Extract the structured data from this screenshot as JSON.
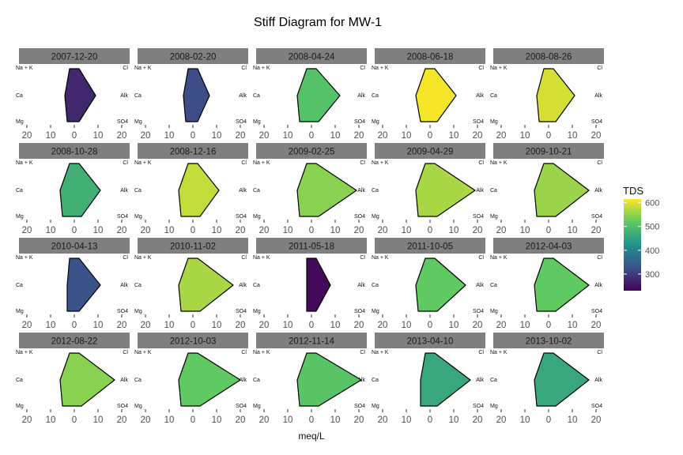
{
  "chart_data": {
    "type": "stiff",
    "title": "Stiff Diagram for MW-1",
    "xlabel": "meq/L",
    "x_ticks": [
      -20,
      -10,
      0,
      10,
      20
    ],
    "x_tick_labels": [
      "20",
      "10",
      "0",
      "10",
      "20"
    ],
    "xlim": [
      -20,
      20
    ],
    "ion_labels": {
      "left": [
        "Na + K",
        "Ca",
        "Mg"
      ],
      "right": [
        "Cl",
        "Alk",
        "SO4"
      ]
    },
    "legend": {
      "title": "TDS",
      "ticks": [
        300,
        400,
        500,
        600
      ],
      "range": [
        230,
        615
      ],
      "colors": [
        "#440154",
        "#3b528b",
        "#21918c",
        "#5ec962",
        "#fde725"
      ]
    },
    "panels": [
      {
        "date": "2007-12-20",
        "tds": 275,
        "cations": [
          -2,
          -4,
          -3
        ],
        "anions": [
          2,
          9,
          2
        ]
      },
      {
        "date": "2008-02-20",
        "tds": 320,
        "cations": [
          -2,
          -4,
          -3
        ],
        "anions": [
          2,
          7,
          2
        ]
      },
      {
        "date": "2008-04-24",
        "tds": 505,
        "cations": [
          -2,
          -6,
          -5
        ],
        "anions": [
          2,
          12,
          3
        ]
      },
      {
        "date": "2008-06-18",
        "tds": 610,
        "cations": [
          -2,
          -6,
          -4
        ],
        "anions": [
          2,
          11,
          3
        ]
      },
      {
        "date": "2008-08-26",
        "tds": 590,
        "cations": [
          -2,
          -5,
          -4
        ],
        "anions": [
          2,
          11,
          3
        ]
      },
      {
        "date": "2008-10-28",
        "tds": 475,
        "cations": [
          -2,
          -6,
          -5
        ],
        "anions": [
          2,
          11,
          3
        ]
      },
      {
        "date": "2008-12-16",
        "tds": 580,
        "cations": [
          -2,
          -6,
          -5
        ],
        "anions": [
          2,
          11,
          3
        ]
      },
      {
        "date": "2009-02-25",
        "tds": 545,
        "cations": [
          -2,
          -6,
          -5
        ],
        "anions": [
          2,
          19,
          3
        ]
      },
      {
        "date": "2009-04-29",
        "tds": 565,
        "cations": [
          -2,
          -6,
          -5
        ],
        "anions": [
          2,
          19,
          3
        ]
      },
      {
        "date": "2009-10-21",
        "tds": 555,
        "cations": [
          -2,
          -6,
          -5
        ],
        "anions": [
          2,
          17,
          3
        ]
      },
      {
        "date": "2010-04-13",
        "tds": 330,
        "cations": [
          -2,
          -3,
          -3
        ],
        "anions": [
          2,
          11,
          2
        ]
      },
      {
        "date": "2010-11-02",
        "tds": 565,
        "cations": [
          -2,
          -6,
          -5
        ],
        "anions": [
          2,
          17,
          3
        ]
      },
      {
        "date": "2011-05-18",
        "tds": 240,
        "cations": [
          -2,
          -2,
          -2
        ],
        "anions": [
          2,
          8,
          2
        ]
      },
      {
        "date": "2011-10-05",
        "tds": 520,
        "cations": [
          -2,
          -6,
          -5
        ],
        "anions": [
          2,
          15,
          3
        ]
      },
      {
        "date": "2012-04-03",
        "tds": 520,
        "cations": [
          -2,
          -6,
          -5
        ],
        "anions": [
          2,
          17,
          3
        ]
      },
      {
        "date": "2012-08-22",
        "tds": 545,
        "cations": [
          -2,
          -6,
          -5
        ],
        "anions": [
          2,
          17,
          3
        ]
      },
      {
        "date": "2012-10-03",
        "tds": 520,
        "cations": [
          -2,
          -6,
          -5
        ],
        "anions": [
          2,
          20,
          3
        ]
      },
      {
        "date": "2012-11-14",
        "tds": 510,
        "cations": [
          -2,
          -6,
          -5
        ],
        "anions": [
          2,
          21,
          3
        ]
      },
      {
        "date": "2013-04-10",
        "tds": 460,
        "cations": [
          -2,
          -4,
          -4
        ],
        "anions": [
          2,
          17,
          3
        ]
      },
      {
        "date": "2013-10-02",
        "tds": 460,
        "cations": [
          -2,
          -6,
          -5
        ],
        "anions": [
          2,
          17,
          3
        ]
      }
    ]
  }
}
